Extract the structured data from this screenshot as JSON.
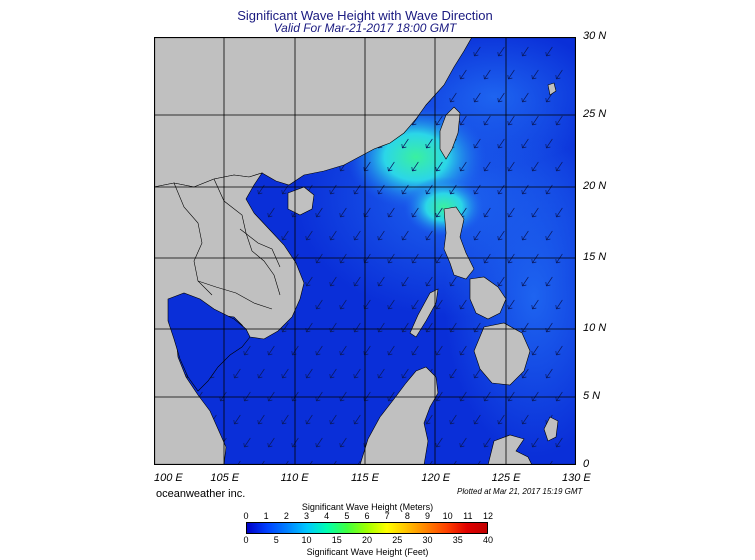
{
  "header": {
    "title": "Significant Wave Height with Wave Direction",
    "subtitle": "Valid For Mar-21-2017 18:00 GMT"
  },
  "map": {
    "lat_labels": [
      "30 N",
      "25 N",
      "20 N",
      "15 N",
      "10 N",
      "5 N",
      "0"
    ],
    "lon_labels": [
      "100 E",
      "105 E",
      "110 E",
      "115 E",
      "120 E",
      "125 E",
      "130 E"
    ],
    "colors": {
      "land": "#c0c0c0",
      "sea_deep": "#0a2fd8",
      "sea_mid": "#1e64f0",
      "sea_light": "#2bd6e8",
      "sea_green": "#3af0a0"
    }
  },
  "footer": {
    "credit": "oceanweather inc.",
    "plotted": "Plotted at Mar 21, 2017 15:19 GMT"
  },
  "colorbar": {
    "title_top": "Significant Wave Height (Meters)",
    "title_bottom": "Significant Wave Height (Feet)",
    "meters": [
      "0",
      "1",
      "2",
      "3",
      "4",
      "5",
      "6",
      "7",
      "8",
      "9",
      "10",
      "11",
      "12"
    ],
    "feet": [
      "0",
      "5",
      "10",
      "15",
      "20",
      "25",
      "30",
      "35",
      "40"
    ],
    "gradient": [
      "#0000c8",
      "#0040ff",
      "#0080ff",
      "#00c8ff",
      "#00ffb0",
      "#40ff40",
      "#a0ff00",
      "#ffff00",
      "#ffc000",
      "#ff8000",
      "#ff4000",
      "#e00000",
      "#c00000"
    ]
  }
}
